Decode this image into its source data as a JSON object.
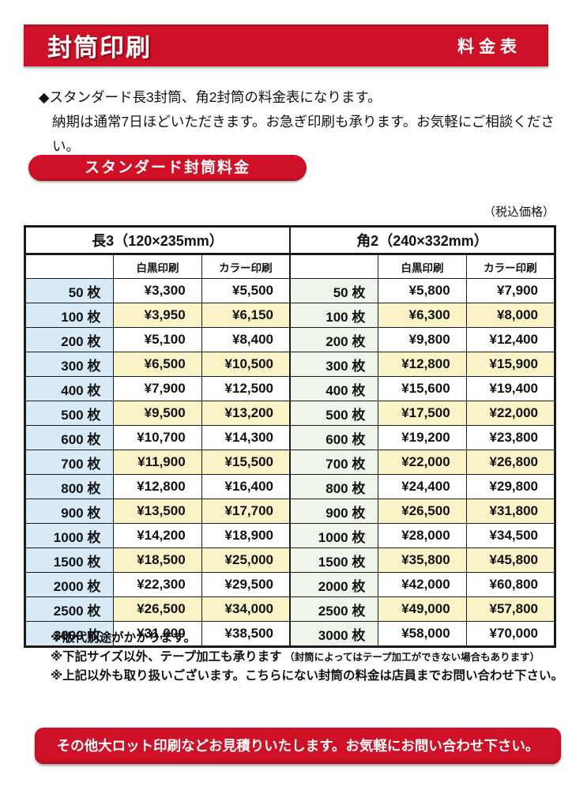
{
  "colors": {
    "red": "#ce1126",
    "border": "#1a1a1a",
    "row_yellow": "#faf3c8",
    "qty_blue": "#d7eaf5",
    "qty_green": "#eff5ea"
  },
  "header": {
    "title": "封筒印刷",
    "right_label": "料金表"
  },
  "intro": {
    "line1": "◆スタンダード長3封筒、角2封筒の料金表になります。",
    "line2": "納期は通常7日ほどいただきます。お急ぎ印刷も承ります。お気軽にご相談ください。"
  },
  "section": {
    "badge": "スタンダード封筒料金",
    "tax_note": "（税込価格）"
  },
  "tables": [
    {
      "title": "長3（120×235mm）",
      "col_headers": [
        "",
        "白黒印刷",
        "カラー印刷"
      ],
      "qty_bg": "#d7eaf5",
      "rows": [
        [
          "50 枚",
          "¥3,300",
          "¥5,500"
        ],
        [
          "100 枚",
          "¥3,950",
          "¥6,150"
        ],
        [
          "200 枚",
          "¥5,100",
          "¥8,400"
        ],
        [
          "300 枚",
          "¥6,500",
          "¥10,500"
        ],
        [
          "400 枚",
          "¥7,900",
          "¥12,500"
        ],
        [
          "500 枚",
          "¥9,500",
          "¥13,200"
        ],
        [
          "600 枚",
          "¥10,700",
          "¥14,300"
        ],
        [
          "700 枚",
          "¥11,900",
          "¥15,500"
        ],
        [
          "800 枚",
          "¥12,800",
          "¥16,400"
        ],
        [
          "900 枚",
          "¥13,500",
          "¥17,700"
        ],
        [
          "1000 枚",
          "¥14,200",
          "¥18,900"
        ],
        [
          "1500 枚",
          "¥18,500",
          "¥25,000"
        ],
        [
          "2000 枚",
          "¥22,300",
          "¥29,500"
        ],
        [
          "2500 枚",
          "¥26,500",
          "¥34,000"
        ],
        [
          "3000 枚",
          "¥31,000",
          "¥38,500"
        ]
      ]
    },
    {
      "title": "角2（240×332mm）",
      "col_headers": [
        "",
        "白黒印刷",
        "カラー印刷"
      ],
      "qty_bg": "#eff5ea",
      "rows": [
        [
          "50 枚",
          "¥5,800",
          "¥7,900"
        ],
        [
          "100 枚",
          "¥6,300",
          "¥8,000"
        ],
        [
          "200 枚",
          "¥9,800",
          "¥12,400"
        ],
        [
          "300 枚",
          "¥12,800",
          "¥15,900"
        ],
        [
          "400 枚",
          "¥15,600",
          "¥19,400"
        ],
        [
          "500 枚",
          "¥17,500",
          "¥22,000"
        ],
        [
          "600 枚",
          "¥19,200",
          "¥23,800"
        ],
        [
          "700 枚",
          "¥22,000",
          "¥26,800"
        ],
        [
          "800 枚",
          "¥24,400",
          "¥29,800"
        ],
        [
          "900 枚",
          "¥26,500",
          "¥31,800"
        ],
        [
          "1000 枚",
          "¥28,000",
          "¥34,500"
        ],
        [
          "1500 枚",
          "¥35,800",
          "¥45,800"
        ],
        [
          "2000 枚",
          "¥42,000",
          "¥60,800"
        ],
        [
          "2500 枚",
          "¥49,000",
          "¥57,800"
        ],
        [
          "3000 枚",
          "¥58,000",
          "¥70,000"
        ]
      ]
    }
  ],
  "notes": [
    {
      "text": "※版代別途がかかります。",
      "paren": ""
    },
    {
      "text": "※下記サイズ以外、テープ加工も承ります",
      "paren": "（封筒によってはテープ加工ができない場合もあります）"
    },
    {
      "text": "※上記以外も取り扱いございます。こちらにない封筒の料金は店員までお問い合わせ下さい。",
      "paren": ""
    }
  ],
  "footer": {
    "banner": "その他大ロット印刷などお見積りいたします。お気軽にお問い合わせ下さい。"
  }
}
